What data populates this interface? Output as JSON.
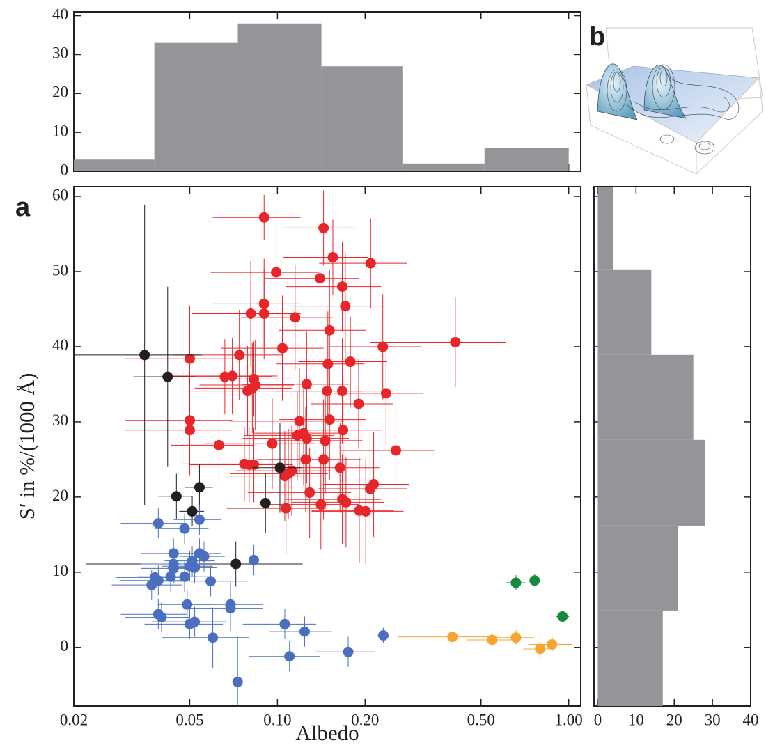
{
  "chart_data": [
    {
      "type": "histogram",
      "orientation": "vertical",
      "log_x": true,
      "color": "#939598",
      "bins": [
        0.02,
        0.0378,
        0.0731,
        0.1416,
        0.27,
        0.514,
        1.0
      ],
      "values": [
        3,
        33,
        38,
        27,
        2,
        6
      ],
      "xlim": [
        0.02,
        1.1
      ],
      "xticks": [
        0.02,
        0.05,
        0.1,
        0.2,
        0.5,
        1
      ],
      "x_tick_labels": false,
      "ylim": [
        0,
        41
      ],
      "yticks": [
        0,
        10,
        20,
        30,
        40
      ]
    },
    {
      "type": "scatter",
      "log_x": true,
      "panel_label": "a",
      "x_label": "Albedo",
      "y_label": "S′ in %/(1000 Å)",
      "xlim": [
        0.02,
        1.1
      ],
      "xticks": [
        0.02,
        0.05,
        {
          "value": 0.1,
          "label": "0.10"
        },
        {
          "value": 0.2,
          "label": "0.20"
        },
        {
          "value": 0.5,
          "label": "0.50"
        },
        {
          "value": 1,
          "label": "1.00"
        }
      ],
      "ylim": [
        -7.8,
        61.3
      ],
      "yticks": [
        0,
        10,
        20,
        30,
        40,
        50,
        60
      ],
      "series": [
        {
          "color": "#e8262a",
          "x": [
            0.09,
            0.144,
            0.155,
            0.209,
            0.099,
            0.14,
            0.167,
            0.171,
            0.09,
            0.081,
            0.09,
            0.115,
            0.151,
            0.408,
            0.23,
            0.104,
            0.074,
            0.05,
            0.178,
            0.149,
            0.083,
            0.066,
            0.07,
            0.084,
            0.126,
            0.148,
            0.167,
            0.082,
            0.079,
            0.236,
            0.19,
            0.05,
            0.119,
            0.151,
            0.05,
            0.168,
            0.117,
            0.123,
            0.126,
            0.146,
            0.096,
            0.063,
            0.255,
            0.125,
            0.144,
            0.077,
            0.08,
            0.083,
            0.164,
            0.112,
            0.109,
            0.106,
            0.214,
            0.208,
            0.129,
            0.167,
            0.172,
            0.141,
            0.107,
            0.191,
            0.201
          ],
          "y": [
            57.2,
            55.8,
            51.9,
            51.1,
            49.9,
            49.1,
            48.0,
            45.4,
            45.7,
            44.4,
            44.4,
            43.9,
            42.2,
            40.6,
            40.0,
            39.8,
            38.9,
            38.4,
            38.0,
            37.7,
            35.7,
            36.0,
            36.1,
            34.9,
            35.0,
            34.1,
            34.1,
            34.5,
            34.1,
            33.8,
            32.4,
            30.2,
            30.1,
            30.3,
            28.9,
            28.9,
            28.2,
            28.5,
            27.8,
            27.5,
            27.1,
            26.9,
            26.2,
            25.0,
            25.0,
            24.4,
            24.3,
            24.3,
            23.9,
            23.5,
            23.1,
            22.8,
            21.7,
            21.1,
            20.6,
            19.7,
            19.3,
            19.0,
            18.5,
            18.2,
            18.1
          ],
          "xerr": [
            0.03,
            0.04,
            0.05,
            0.07,
            0.04,
            0.05,
            0.06,
            0.06,
            0.03,
            0.03,
            0.03,
            0.04,
            0.05,
            0.2,
            0.08,
            0.04,
            0.03,
            0.02,
            0.06,
            0.05,
            0.03,
            0.03,
            0.03,
            0.03,
            0.05,
            0.05,
            0.06,
            0.03,
            0.03,
            0.08,
            0.06,
            0.02,
            0.05,
            0.05,
            0.02,
            0.06,
            0.04,
            0.04,
            0.05,
            0.05,
            0.04,
            0.02,
            0.09,
            0.04,
            0.05,
            0.03,
            0.03,
            0.03,
            0.06,
            0.04,
            0.04,
            0.04,
            0.07,
            0.07,
            0.05,
            0.06,
            0.06,
            0.05,
            0.04,
            0.06,
            0.07
          ],
          "yerr": [
            3,
            5,
            5,
            6,
            8,
            5,
            6,
            7,
            6,
            7,
            6,
            7,
            8,
            6,
            7,
            7,
            6,
            7,
            6,
            7,
            5,
            5,
            5,
            6,
            7,
            8,
            7,
            6,
            6,
            7,
            6,
            6,
            7,
            8,
            6,
            7,
            6,
            7,
            6,
            7,
            6,
            5,
            7,
            7,
            8,
            5,
            5,
            5,
            6,
            6,
            6,
            6,
            7,
            7,
            6,
            6,
            6,
            6,
            6,
            7,
            7
          ]
        },
        {
          "color": "#231f20",
          "x": [
            0.035,
            0.042,
            0.045,
            0.054,
            0.051,
            0.102,
            0.091,
            0.072
          ],
          "y": [
            38.9,
            36.0,
            20.1,
            21.3,
            18.1,
            23.9,
            19.2,
            11.1
          ],
          "xerr": [
            0.02,
            0.01,
            0.006,
            0.006,
            0.005,
            0.02,
            0.03,
            0.05
          ],
          "yerr": [
            20,
            12,
            3,
            3,
            2,
            6,
            4,
            3
          ]
        },
        {
          "color": "#4a6fbf",
          "x": [
            0.039,
            0.054,
            0.048,
            0.044,
            0.054,
            0.056,
            0.044,
            0.051,
            0.044,
            0.05,
            0.052,
            0.083,
            0.038,
            0.039,
            0.037,
            0.043,
            0.048,
            0.059,
            0.049,
            0.069,
            0.069,
            0.039,
            0.04,
            0.052,
            0.05,
            0.06,
            0.106,
            0.124,
            0.231,
            0.11,
            0.175,
            0.073
          ],
          "y": [
            16.5,
            17.0,
            15.8,
            12.5,
            12.5,
            12.1,
            11.1,
            11.5,
            10.5,
            10.8,
            10.6,
            11.6,
            9.3,
            8.9,
            8.3,
            9.4,
            9.4,
            8.8,
            5.7,
            5.7,
            5.2,
            4.4,
            4.0,
            3.4,
            3.1,
            1.3,
            3.1,
            2.1,
            1.6,
            -1.2,
            -0.6,
            -4.6
          ],
          "xerr": [
            0.01,
            0.01,
            0.01,
            0.01,
            0.01,
            0.01,
            0.01,
            0.01,
            0.01,
            0.01,
            0.01,
            0.02,
            0.01,
            0.01,
            0.01,
            0.01,
            0.01,
            0.02,
            0.01,
            0.02,
            0.02,
            0.01,
            0.01,
            0.015,
            0.015,
            0.02,
            0.03,
            0.03,
            0.01,
            0.03,
            0.04,
            0.03
          ],
          "yerr": [
            2,
            2,
            2,
            2,
            2,
            2,
            2,
            2,
            2,
            2,
            2,
            2,
            2,
            2,
            2,
            2,
            2,
            2,
            2,
            3,
            3,
            2,
            2,
            2,
            2,
            4,
            2,
            2,
            1,
            2,
            2,
            6
          ]
        },
        {
          "color": "#f7a431",
          "x": [
            0.399,
            0.546,
            0.659,
            0.798,
            0.877
          ],
          "y": [
            1.4,
            1.0,
            1.3,
            -0.2,
            0.4
          ],
          "xerr": [
            0.14,
            0.1,
            0.1,
            0.1,
            0.15
          ],
          "yerr": [
            0.6,
            0.6,
            1,
            1.5,
            1
          ]
        },
        {
          "color": "#138a3c",
          "x": [
            0.659,
            0.764,
            0.952
          ],
          "y": [
            8.6,
            8.9,
            4.1
          ],
          "xerr": [
            0.05,
            0.03,
            0.05
          ],
          "yerr": [
            1,
            0.8,
            0.5
          ]
        }
      ]
    },
    {
      "type": "histogram",
      "orientation": "horizontal",
      "color": "#939598",
      "bins": [
        -7.8,
        4.9,
        16.2,
        27.6,
        38.9,
        50.2,
        61.5
      ],
      "values": [
        17,
        21,
        28,
        25,
        14,
        4
      ],
      "xlim": [
        -1,
        40
      ],
      "xticks": [
        0,
        10,
        20,
        30,
        40
      ],
      "ylim": [
        -7.8,
        61.3
      ],
      "yticks": [
        0,
        10,
        20,
        30,
        40,
        50,
        60
      ],
      "y_tick_labels": false
    },
    {
      "type": "surface",
      "panel_label": "b"
    }
  ]
}
